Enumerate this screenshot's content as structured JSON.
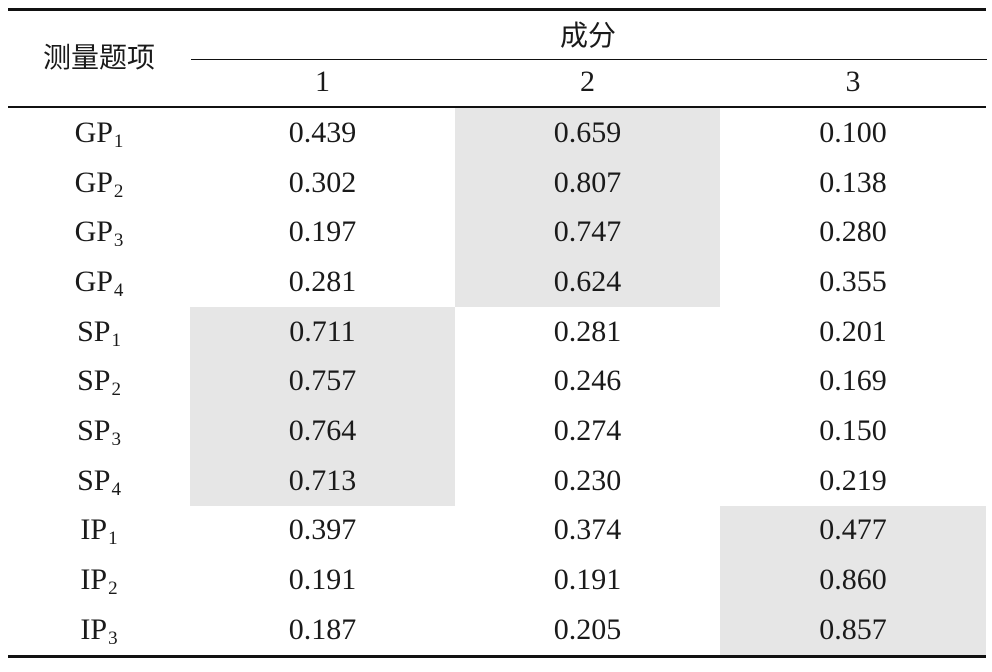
{
  "header": {
    "item_label": "测量题项",
    "component_label": "成分",
    "columns": [
      "1",
      "2",
      "3"
    ]
  },
  "rows": [
    {
      "base": "GP",
      "sub": "1",
      "values": [
        "0.439",
        "0.659",
        "0.100"
      ],
      "highlight": 1
    },
    {
      "base": "GP",
      "sub": "2",
      "values": [
        "0.302",
        "0.807",
        "0.138"
      ],
      "highlight": 1
    },
    {
      "base": "GP",
      "sub": "3",
      "values": [
        "0.197",
        "0.747",
        "0.280"
      ],
      "highlight": 1
    },
    {
      "base": "GP",
      "sub": "4",
      "values": [
        "0.281",
        "0.624",
        "0.355"
      ],
      "highlight": 1
    },
    {
      "base": "SP",
      "sub": "1",
      "values": [
        "0.711",
        "0.281",
        "0.201"
      ],
      "highlight": 0
    },
    {
      "base": "SP",
      "sub": "2",
      "values": [
        "0.757",
        "0.246",
        "0.169"
      ],
      "highlight": 0
    },
    {
      "base": "SP",
      "sub": "3",
      "values": [
        "0.764",
        "0.274",
        "0.150"
      ],
      "highlight": 0
    },
    {
      "base": "SP",
      "sub": "4",
      "values": [
        "0.713",
        "0.230",
        "0.219"
      ],
      "highlight": 0
    },
    {
      "base": "IP",
      "sub": "1",
      "values": [
        "0.397",
        "0.374",
        "0.477"
      ],
      "highlight": 2
    },
    {
      "base": "IP",
      "sub": "2",
      "values": [
        "0.191",
        "0.191",
        "0.860"
      ],
      "highlight": 2
    },
    {
      "base": "IP",
      "sub": "3",
      "values": [
        "0.187",
        "0.205",
        "0.857"
      ],
      "highlight": 2
    }
  ],
  "colors": {
    "highlight": "#e6e6e6",
    "rule": "#111111"
  }
}
